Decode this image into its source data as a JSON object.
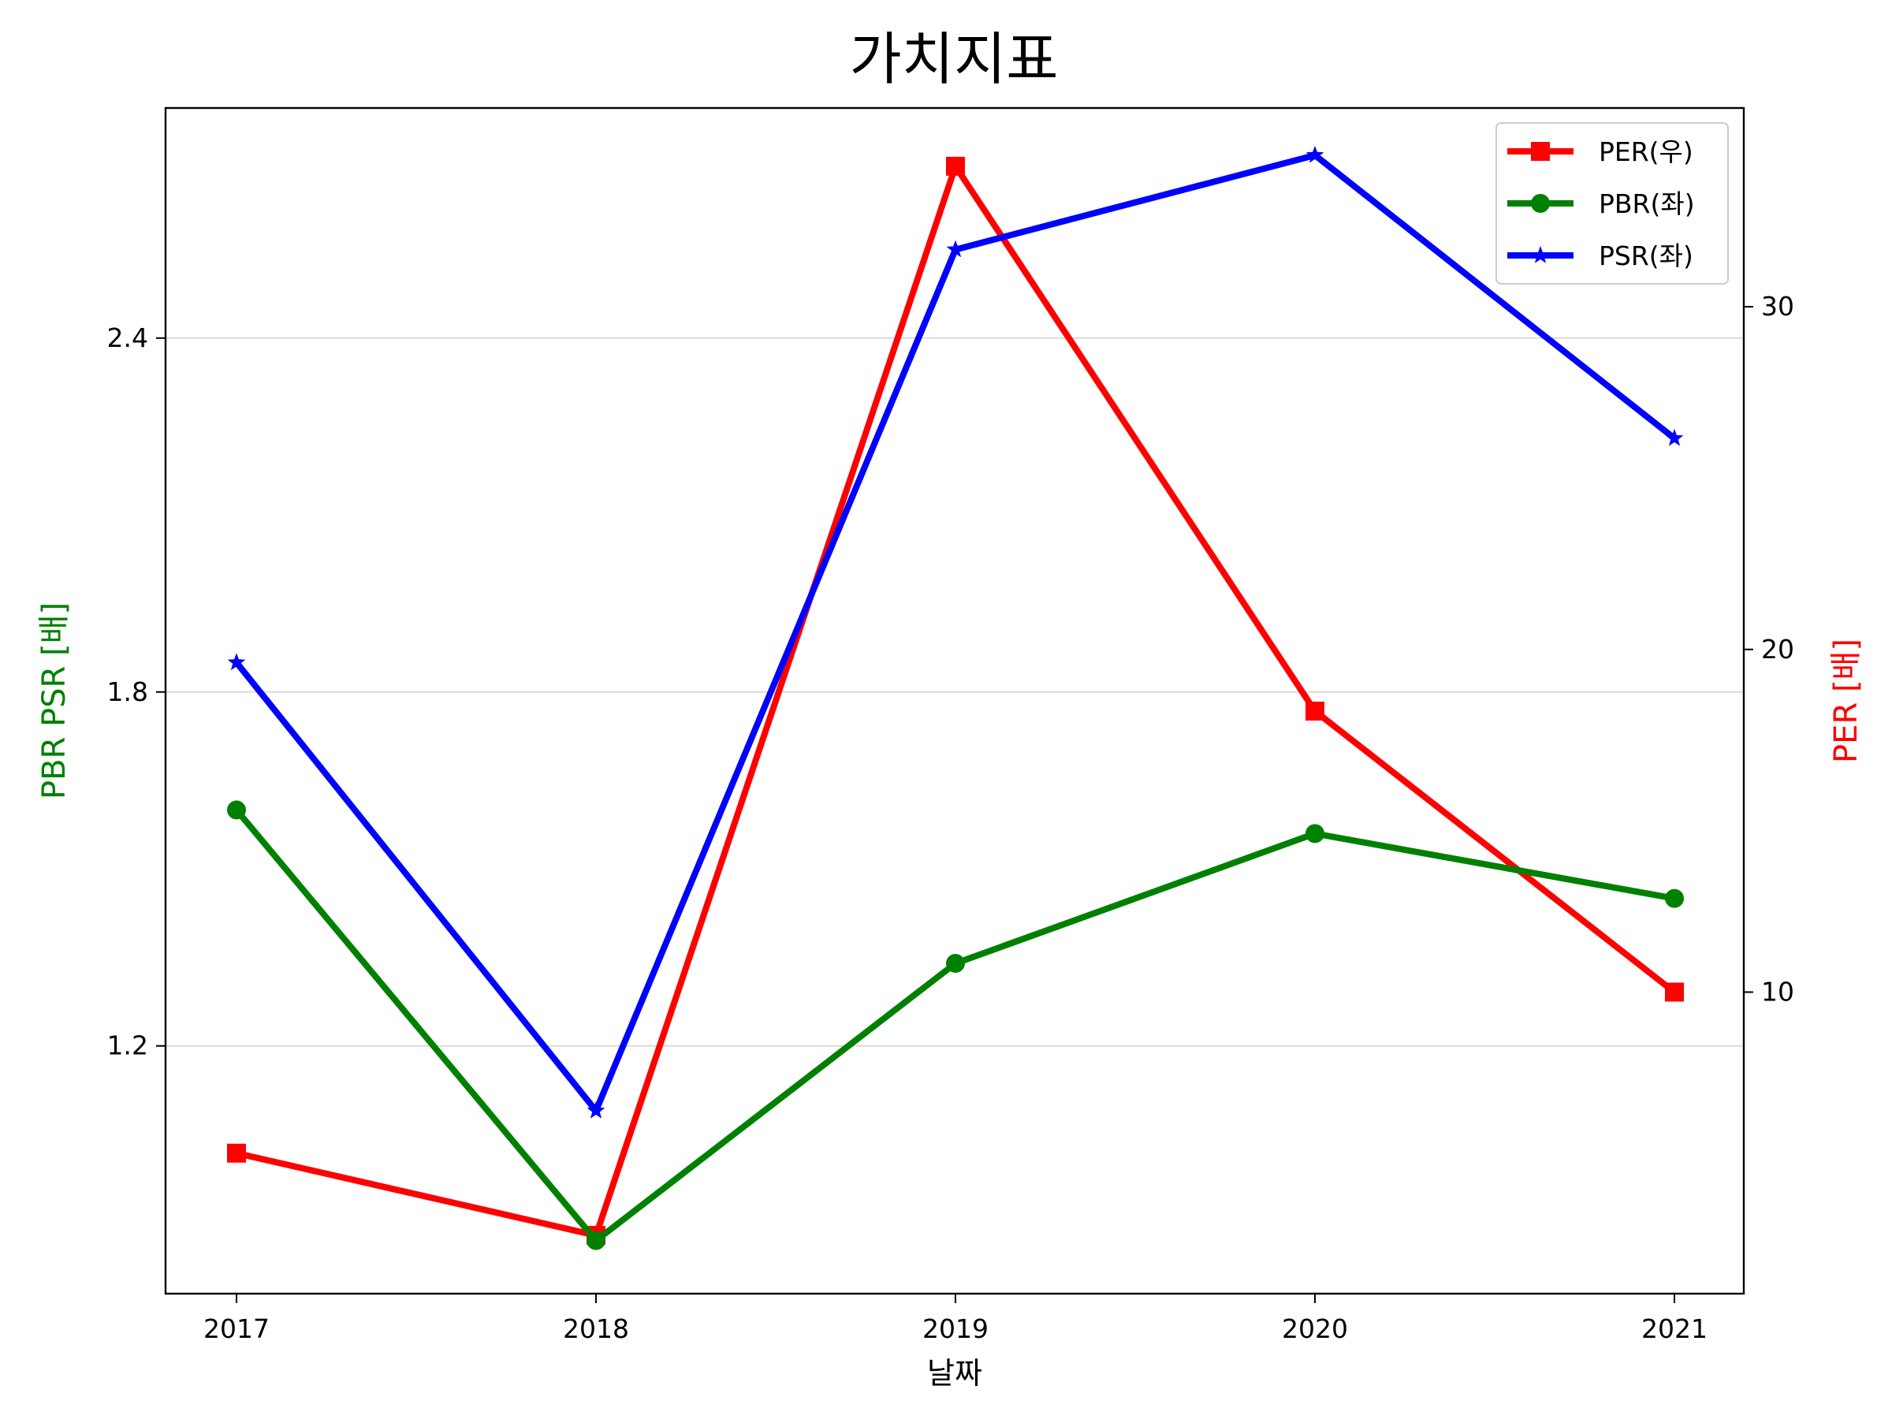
{
  "chart_data": {
    "type": "line",
    "title": "가치지표",
    "xlabel": "날짜",
    "ylabel_left": "PBR PSR [배]",
    "ylabel_right": "PER [배]",
    "ylabel_left_color": "#008000",
    "ylabel_right_color": "#ff0000",
    "categories": [
      "2017",
      "2018",
      "2019",
      "2020",
      "2021"
    ],
    "left_axis": {
      "range": [
        0.78,
        2.79
      ],
      "ticks": [
        1.2,
        1.8,
        2.4
      ],
      "tick_labels": [
        "1.2",
        "1.8",
        "2.4"
      ],
      "gridlines": true
    },
    "right_axis": {
      "range": [
        1.2,
        35.8
      ],
      "ticks": [
        10,
        20,
        30
      ],
      "tick_labels": [
        "10",
        "20",
        "30"
      ],
      "gridlines": false
    },
    "series": [
      {
        "name": "PER(우)",
        "axis": "right",
        "color": "#ff0000",
        "marker": "square",
        "values": [
          5.3,
          2.9,
          34.1,
          18.2,
          10.0
        ]
      },
      {
        "name": "PBR(좌)",
        "axis": "left",
        "color": "#008000",
        "marker": "circle",
        "values": [
          1.6,
          0.87,
          1.34,
          1.56,
          1.45
        ]
      },
      {
        "name": "PSR(좌)",
        "axis": "left",
        "color": "#0000ff",
        "marker": "star",
        "values": [
          1.85,
          1.09,
          2.55,
          2.71,
          2.23
        ]
      }
    ],
    "legend": {
      "position": "top-right",
      "order": [
        "PER(우)",
        "PBR(좌)",
        "PSR(좌)"
      ]
    }
  }
}
